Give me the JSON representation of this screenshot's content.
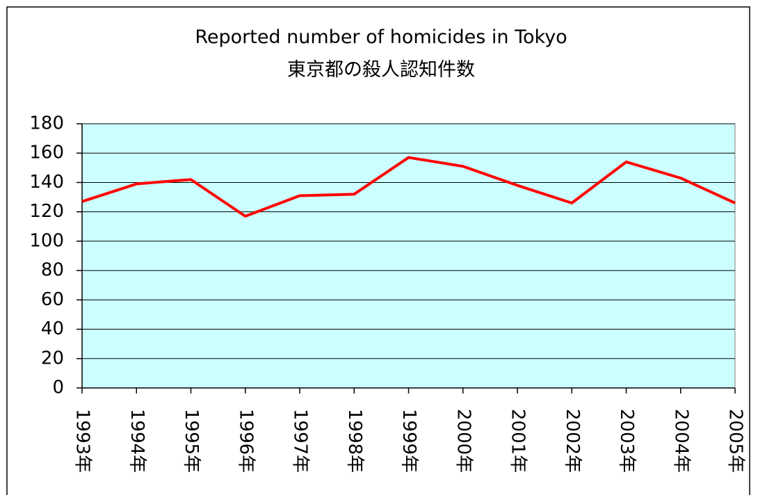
{
  "chart_data": {
    "type": "line",
    "title": "Reported number of homicides in Tokyo",
    "subtitle": "東京都の殺人認知件数",
    "categories": [
      "1993年",
      "1994年",
      "1995年",
      "1996年",
      "1997年",
      "1998年",
      "1999年",
      "2000年",
      "2001年",
      "2002年",
      "2003年",
      "2004年",
      "2005年"
    ],
    "values": [
      127,
      139,
      142,
      117,
      131,
      132,
      157,
      151,
      138,
      126,
      154,
      143,
      126
    ],
    "color": "#ff0000",
    "ylim": [
      0,
      180
    ],
    "yticks": [
      0,
      20,
      40,
      60,
      80,
      100,
      120,
      140,
      160,
      180
    ],
    "grid": true,
    "background": "#ccffff"
  }
}
